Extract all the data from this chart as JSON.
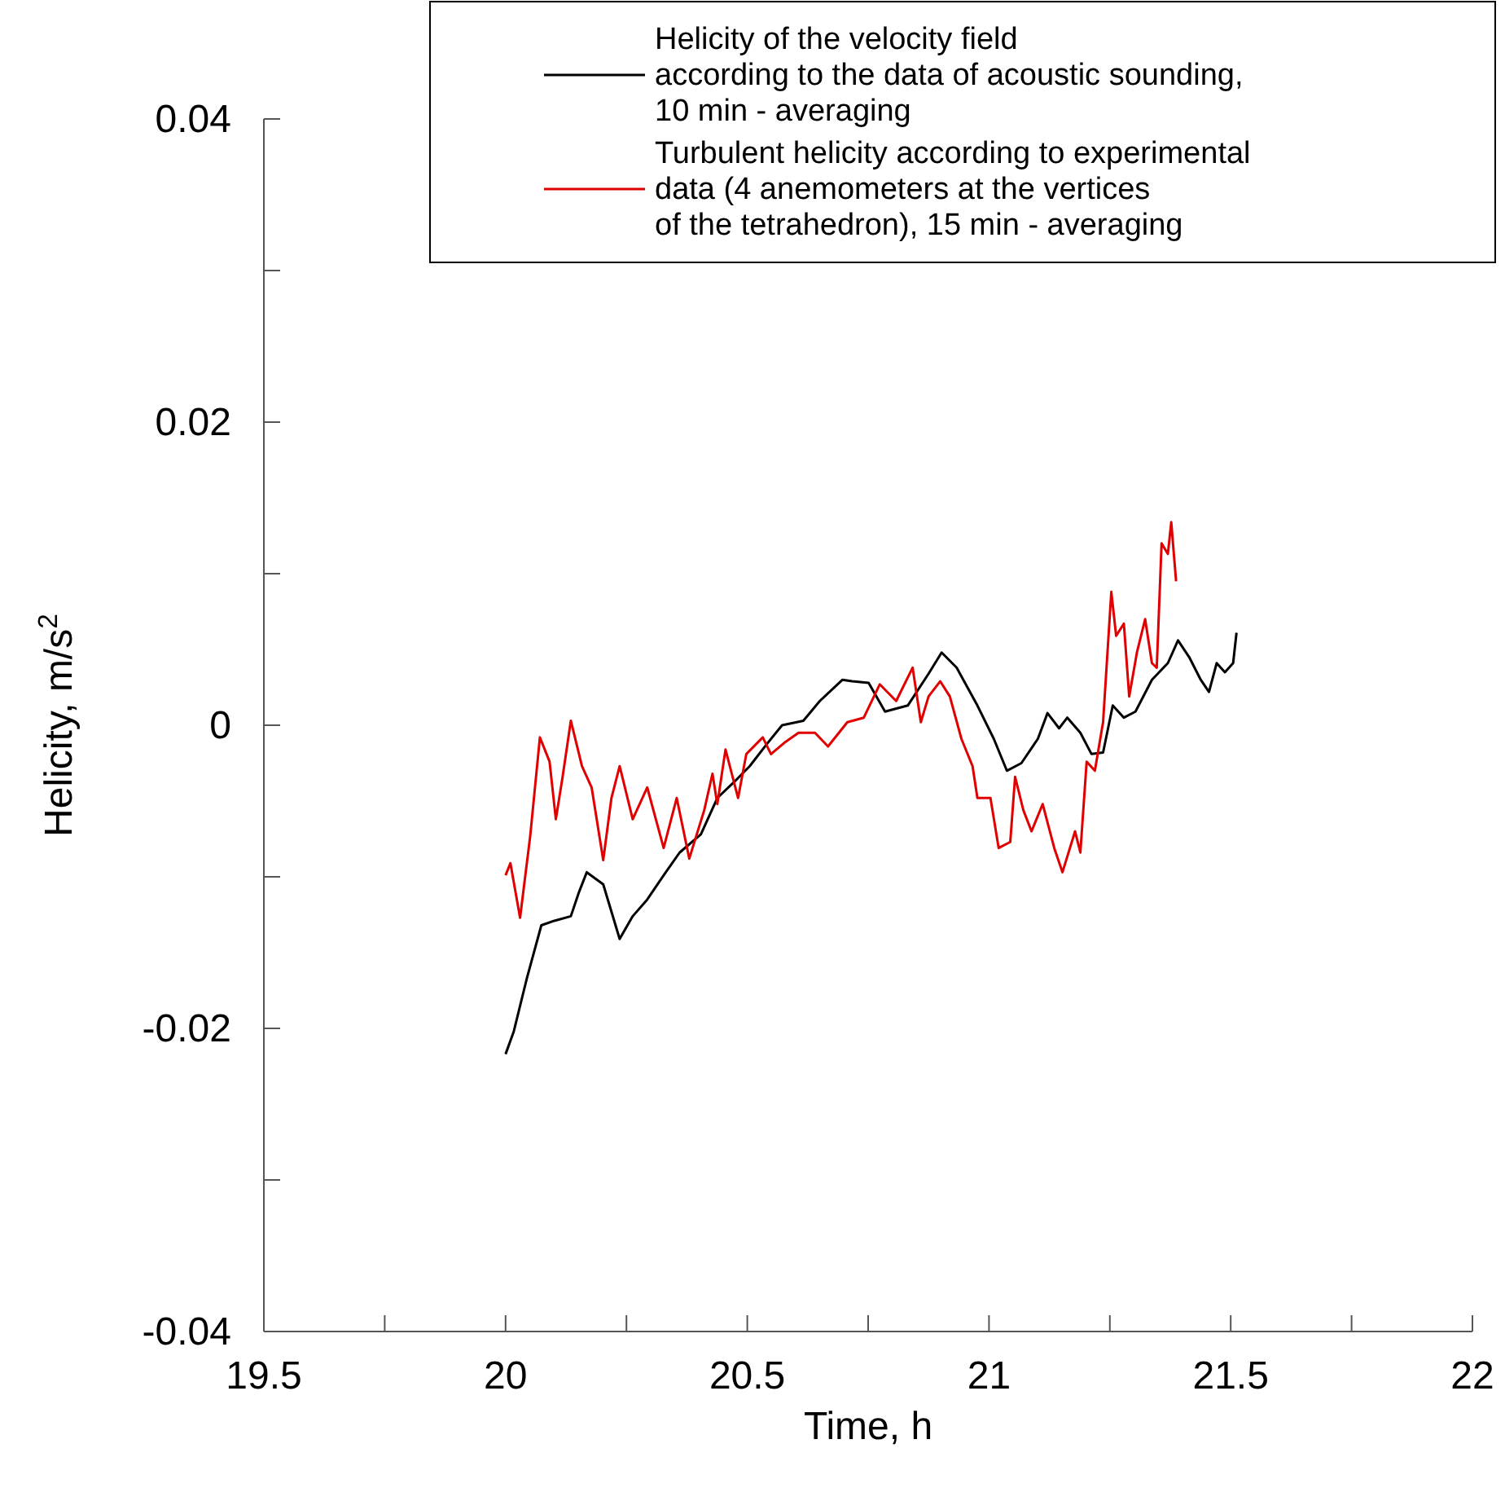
{
  "chart_data": {
    "type": "line",
    "xlabel": "Time, h",
    "ylabel": "Helicity, m/s$^{2}$",
    "xlim": [
      19.5,
      22
    ],
    "ylim": [
      -0.04,
      0.04
    ],
    "xticks": [
      19.5,
      {
        "value": 19.75,
        "label": null
      },
      20,
      {
        "value": 20.25,
        "label": null
      },
      20.5,
      {
        "value": 20.75,
        "label": null
      },
      21,
      {
        "value": 21.25,
        "label": null
      },
      21.5,
      {
        "value": 21.75,
        "label": null
      },
      22
    ],
    "yticks": [
      -0.04,
      {
        "value": -0.03,
        "label": null
      },
      -0.02,
      {
        "value": -0.01,
        "label": null
      },
      0,
      {
        "value": 0.01,
        "label": null
      },
      0.02,
      {
        "value": 0.03,
        "label": null
      },
      0.04
    ],
    "grid": false,
    "legend": "top right",
    "marker": "none",
    "line_style": "solid",
    "series": [
      {
        "name": "Helicity of the velocity field\naccording to the data of acoustic sounding,\n10 min - averaging",
        "color": "#000000",
        "x": [
          20.0,
          20.017,
          20.044,
          20.074,
          20.101,
          20.135,
          20.152,
          20.168,
          20.202,
          20.236,
          20.263,
          20.293,
          20.327,
          20.36,
          20.404,
          20.438,
          20.471,
          20.505,
          20.539,
          20.572,
          20.616,
          20.65,
          20.697,
          20.717,
          20.751,
          20.785,
          20.832,
          20.875,
          20.902,
          20.933,
          20.976,
          21.01,
          21.037,
          21.067,
          21.101,
          21.121,
          21.145,
          21.162,
          21.189,
          21.212,
          21.236,
          21.256,
          21.279,
          21.303,
          21.337,
          21.37,
          21.391,
          21.414,
          21.438,
          21.455,
          21.471,
          21.488,
          21.505,
          21.512
        ],
        "values": [
          -0.0217,
          -0.0202,
          -0.0167,
          -0.0132,
          -0.0129,
          -0.0126,
          -0.011,
          -0.0097,
          -0.0105,
          -0.0141,
          -0.0126,
          -0.0115,
          -0.0099,
          -0.0084,
          -0.0072,
          -0.0048,
          -0.0038,
          -0.0027,
          -0.0013,
          0.0,
          0.0003,
          0.0016,
          0.003,
          0.0029,
          0.0028,
          0.0009,
          0.0013,
          0.0034,
          0.0048,
          0.0038,
          0.0013,
          -0.0009,
          -0.003,
          -0.0025,
          -0.0009,
          0.0008,
          -0.0002,
          0.0005,
          -0.0005,
          -0.0019,
          -0.0018,
          0.0013,
          0.0005,
          0.0009,
          0.003,
          0.0041,
          0.0056,
          0.0045,
          0.003,
          0.0022,
          0.0041,
          0.0035,
          0.0041,
          0.0061
        ]
      },
      {
        "name": "Turbulent helicity according to experimental\ndata (4 anemometers at the vertices\nof the tetrahedron), 15 min - averaging",
        "color": "#e00000",
        "x": [
          20.0,
          20.01,
          20.03,
          20.051,
          20.071,
          20.091,
          20.104,
          20.118,
          20.135,
          20.158,
          20.178,
          20.202,
          20.219,
          20.236,
          20.263,
          20.293,
          20.327,
          20.354,
          20.38,
          20.411,
          20.428,
          20.438,
          20.455,
          20.481,
          20.498,
          20.532,
          20.549,
          20.579,
          20.606,
          20.64,
          20.667,
          20.707,
          20.741,
          20.774,
          20.808,
          20.842,
          20.859,
          20.875,
          20.899,
          20.919,
          20.943,
          20.966,
          20.976,
          21.003,
          21.02,
          21.044,
          21.054,
          21.071,
          21.088,
          21.111,
          21.135,
          21.152,
          21.178,
          21.189,
          21.202,
          21.219,
          21.236,
          21.253,
          21.263,
          21.279,
          21.29,
          21.306,
          21.323,
          21.337,
          21.347,
          21.357,
          21.37,
          21.377,
          21.387
        ],
        "values": [
          -0.0099,
          -0.0091,
          -0.0127,
          -0.0073,
          -0.0008,
          -0.0024,
          -0.0062,
          -0.0034,
          0.0003,
          -0.0027,
          -0.0041,
          -0.0089,
          -0.0048,
          -0.0027,
          -0.0062,
          -0.0041,
          -0.0081,
          -0.0048,
          -0.0088,
          -0.0056,
          -0.0032,
          -0.0052,
          -0.0016,
          -0.0048,
          -0.0019,
          -0.0008,
          -0.0019,
          -0.0011,
          -0.0005,
          -0.0005,
          -0.0014,
          0.0002,
          0.0005,
          0.0027,
          0.0016,
          0.0038,
          0.0002,
          0.0019,
          0.0029,
          0.0019,
          -0.0009,
          -0.0027,
          -0.0048,
          -0.0048,
          -0.0081,
          -0.0077,
          -0.0034,
          -0.0056,
          -0.007,
          -0.0052,
          -0.0081,
          -0.0097,
          -0.007,
          -0.0084,
          -0.0024,
          -0.003,
          0.0002,
          0.0088,
          0.0059,
          0.0067,
          0.0019,
          0.0048,
          0.007,
          0.0041,
          0.0038,
          0.012,
          0.0113,
          0.0134,
          0.0095
        ]
      }
    ]
  }
}
